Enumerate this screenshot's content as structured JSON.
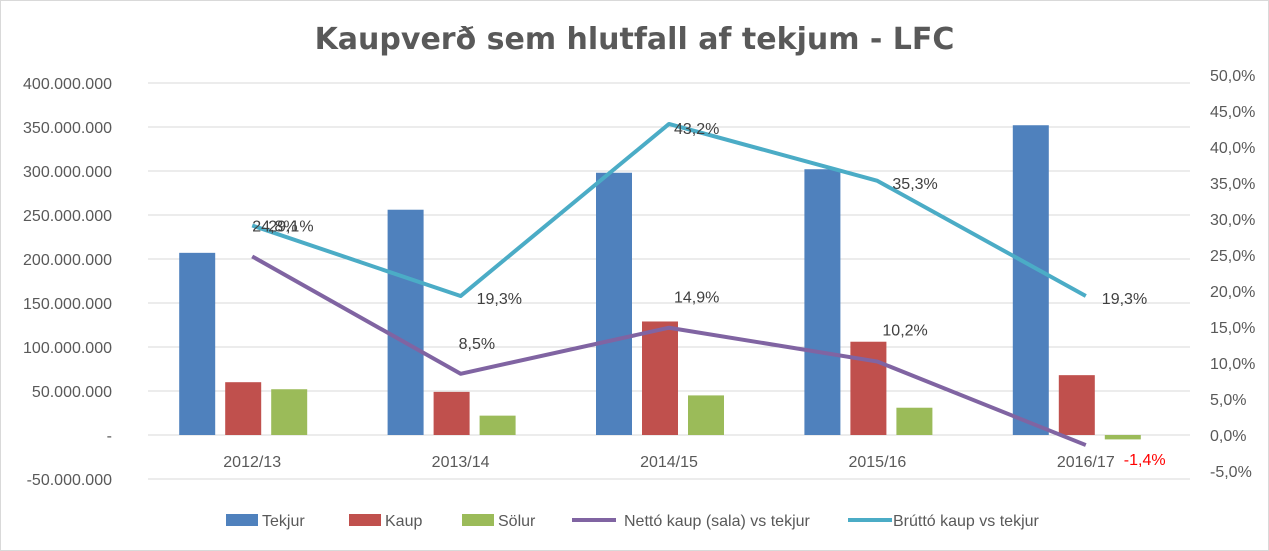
{
  "chart_data": {
    "type": "bar",
    "title": "Kaupverð sem hlutfall af tekjum - LFC",
    "categories": [
      "2012/13",
      "2013/14",
      "2014/15",
      "2015/16",
      "2016/17"
    ],
    "y_left": {
      "lim": [
        -50000000,
        400000000
      ],
      "ticks": [
        400000000,
        350000000,
        300000000,
        250000000,
        200000000,
        150000000,
        100000000,
        50000000,
        0,
        -50000000
      ],
      "tick_labels": [
        "400.000.000",
        "350.000.000",
        "300.000.000",
        "250.000.000",
        "200.000.000",
        "150.000.000",
        "100.000.000",
        "50.000.000",
        "-",
        "-50.000.000"
      ]
    },
    "y_right": {
      "lim": [
        -5,
        50
      ],
      "ticks": [
        50,
        45,
        40,
        35,
        30,
        25,
        20,
        15,
        10,
        5,
        0,
        -5
      ],
      "tick_labels": [
        "50,0%",
        "45,0%",
        "40,0%",
        "35,0%",
        "30,0%",
        "25,0%",
        "20,0%",
        "15,0%",
        "10,0%",
        "5,0%",
        "0,0%",
        "-5,0%"
      ]
    },
    "grid": true,
    "legend_position": "bottom",
    "bar_series": [
      {
        "name": "Tekjur",
        "color": "#4f81bd",
        "values": [
          207000000,
          256000000,
          298000000,
          302000000,
          352000000
        ]
      },
      {
        "name": "Kaup",
        "color": "#c0504d",
        "values": [
          60000000,
          49000000,
          129000000,
          106000000,
          68000000
        ]
      },
      {
        "name": "Sölur",
        "color": "#9bbb59",
        "values": [
          52000000,
          22000000,
          45000000,
          31000000,
          -5000000
        ]
      }
    ],
    "line_series": [
      {
        "name": "Nettó kaup (sala) vs tekjur",
        "color": "#8064a2",
        "values": [
          24.8,
          8.5,
          14.9,
          10.2,
          -1.4
        ],
        "labels": [
          "24,8%",
          "8,5%",
          "14,9%",
          "10,2%",
          "-1,4%"
        ]
      },
      {
        "name": "Brúttó kaup vs tekjur",
        "color": "#4bacc6",
        "values": [
          29.1,
          19.3,
          43.2,
          35.3,
          19.3
        ],
        "labels": [
          "29,1%",
          "19,3%",
          "43,2%",
          "35,3%",
          "19,3%"
        ]
      }
    ],
    "negative_label_color": "#ff0000"
  }
}
